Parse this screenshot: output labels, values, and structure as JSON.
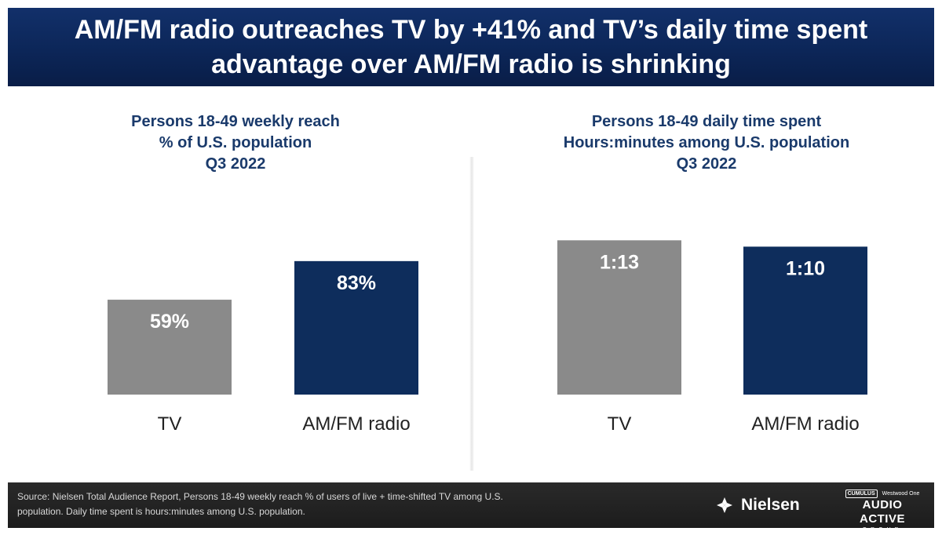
{
  "header": {
    "title_line1": "AM/FM radio outreaches TV by +41% and TV’s daily time spent",
    "title_line2": "advantage over AM/FM radio is shrinking"
  },
  "chart_data": [
    {
      "type": "bar",
      "title": [
        "Persons 18-49 weekly reach",
        "% of U.S. population",
        "Q3 2022"
      ],
      "categories": [
        "TV",
        "AM/FM radio"
      ],
      "values": [
        59,
        83
      ],
      "value_labels": [
        "59%",
        "83%"
      ],
      "bar_colors": [
        "#8a8a8a",
        "#0e2d5c"
      ],
      "ylim": [
        0,
        100
      ],
      "grid": false,
      "legend": "none"
    },
    {
      "type": "bar",
      "title": [
        "Persons 18-49 daily time spent",
        "Hours:minutes among U.S. population",
        "Q3 2022"
      ],
      "categories": [
        "TV",
        "AM/FM radio"
      ],
      "values": [
        73,
        70
      ],
      "value_labels": [
        "1:13",
        "1:10"
      ],
      "bar_colors": [
        "#8a8a8a",
        "#0e2d5c"
      ],
      "ylim": [
        0,
        85
      ],
      "grid": false,
      "legend": "none"
    }
  ],
  "footer": {
    "source_line1": "Source: Nielsen Total Audience Report, Persons 18-49 weekly reach % of users of live + time-shifted TV among U.S.",
    "source_line2": "population. Daily time spent is hours:minutes among U.S. population.",
    "nielsen_label": "Nielsen",
    "aag_badge": "CUMULUS",
    "aag_partner": "Westwood One",
    "aag_main": "AUDIO ACTIVE",
    "aag_group": "GROUP"
  },
  "colors": {
    "header_bg": "#0c2658",
    "title_text": "#1a3a6b",
    "tv_bar": "#8a8a8a",
    "radio_bar": "#0e2d5c",
    "footer_bg": "#222222"
  }
}
